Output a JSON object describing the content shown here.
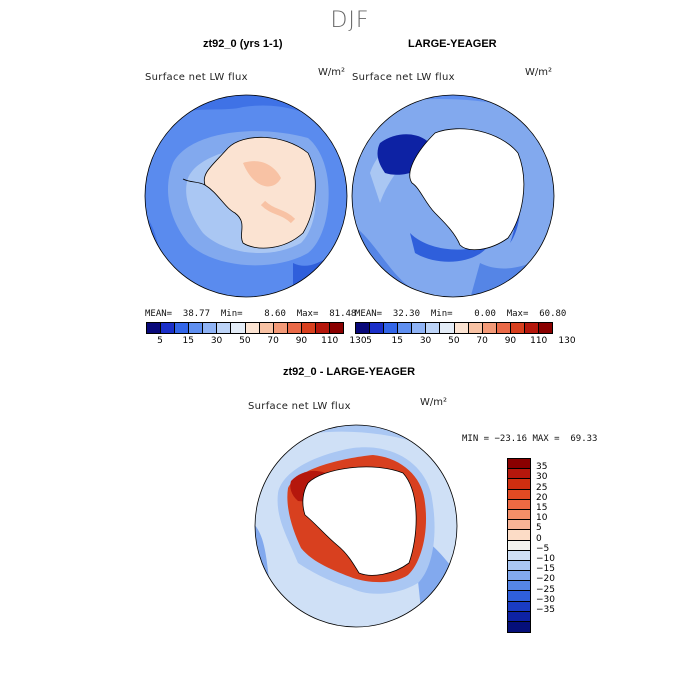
{
  "season": "DJF",
  "panels": [
    {
      "title": "zt92_0 (yrs 1-1)",
      "variable": "Surface net LW flux",
      "units": "W/m²",
      "stats": "MEAN=  38.77  Min=    8.60  Max=  81.48"
    },
    {
      "title": "LARGE-YEAGER",
      "variable": "Surface net LW flux",
      "units": "W/m²",
      "stats": "MEAN=  32.30  Min=    0.00  Max=  60.80"
    }
  ],
  "colorbar_top": {
    "ticks": [
      "5",
      "15",
      "30",
      "50",
      "70",
      "90",
      "110",
      "130"
    ],
    "colors": [
      "#08087a",
      "#1a2fc8",
      "#3366e8",
      "#5f8ff0",
      "#8fb3f5",
      "#bcd3f7",
      "#e3ecf7",
      "#fbe3d2",
      "#f8c2a4",
      "#f39a78",
      "#ea6a48",
      "#d8401f",
      "#b5170c",
      "#8a0000"
    ]
  },
  "diff_panel": {
    "title": "zt92_0 - LARGE-YEAGER",
    "variable": "Surface net LW flux",
    "units": "W/m²",
    "stats": "MIN = −23.16 MAX =  69.33",
    "colorbar": {
      "ticks": [
        "35",
        "30",
        "25",
        "20",
        "15",
        "10",
        "5",
        "0",
        "−5",
        "−10",
        "−15",
        "−20",
        "−25",
        "−30",
        "−35"
      ],
      "colors": [
        "#8a0000",
        "#b5170c",
        "#cf2e10",
        "#e24a23",
        "#ee6a43",
        "#f58f68",
        "#f9b496",
        "#fcdcc6",
        "#f3f3ee",
        "#cfe0f6",
        "#aac7f3",
        "#82a9ee",
        "#5585e6",
        "#2f5fdb",
        "#1a3cc4",
        "#0d22a4",
        "#050f7a"
      ]
    }
  }
}
